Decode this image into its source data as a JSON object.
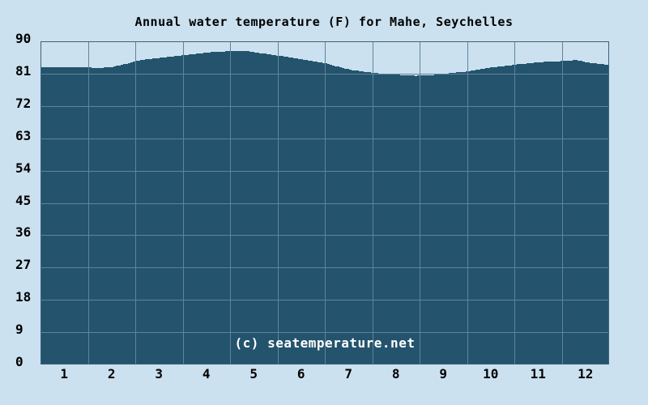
{
  "chart_data": {
    "type": "area",
    "title": "Annual water temperature (F) for Mahe, Seychelles",
    "xlabel": "",
    "ylabel": "",
    "ylim": [
      0,
      90
    ],
    "y_ticks": [
      90,
      81,
      72,
      63,
      54,
      45,
      36,
      27,
      18,
      9,
      0
    ],
    "categories": [
      "1",
      "2",
      "3",
      "4",
      "5",
      "6",
      "7",
      "8",
      "9",
      "10",
      "11",
      "12"
    ],
    "series": [
      {
        "name": "Water temperature (F)",
        "values": [
          82.8,
          82.9,
          85.4,
          86.9,
          86.9,
          85.0,
          82.1,
          80.7,
          81.0,
          82.7,
          84.2,
          84.1
        ]
      }
    ],
    "curve_month_temp": [
      [
        0.0,
        82.7
      ],
      [
        0.4,
        82.8
      ],
      [
        0.8,
        82.7
      ],
      [
        1.0,
        82.7
      ],
      [
        1.2,
        82.5
      ],
      [
        1.5,
        82.9
      ],
      [
        1.8,
        83.8
      ],
      [
        2.0,
        84.6
      ],
      [
        2.5,
        85.4
      ],
      [
        3.0,
        86.1
      ],
      [
        3.5,
        86.9
      ],
      [
        4.0,
        87.3
      ],
      [
        4.3,
        87.4
      ],
      [
        4.5,
        86.9
      ],
      [
        5.0,
        86.0
      ],
      [
        5.5,
        85.0
      ],
      [
        6.0,
        83.8
      ],
      [
        6.5,
        82.1
      ],
      [
        7.0,
        81.2
      ],
      [
        7.5,
        80.7
      ],
      [
        7.9,
        80.4
      ],
      [
        8.2,
        80.5
      ],
      [
        8.5,
        81.0
      ],
      [
        9.0,
        81.6
      ],
      [
        9.5,
        82.7
      ],
      [
        10.0,
        83.5
      ],
      [
        10.5,
        84.2
      ],
      [
        11.0,
        84.5
      ],
      [
        11.3,
        84.8
      ],
      [
        11.5,
        84.1
      ],
      [
        12.0,
        83.4
      ]
    ],
    "grid": true,
    "legend": false,
    "watermark": "(c) seatemperature.net",
    "colors": {
      "background": "#cbe1ef",
      "area_fill": "#24536d",
      "grid_line": "#5f849c",
      "plot_border": "#3c617a",
      "tick_text": "#000000",
      "title_text": "#000000",
      "watermark_text": "#ffffff"
    }
  }
}
